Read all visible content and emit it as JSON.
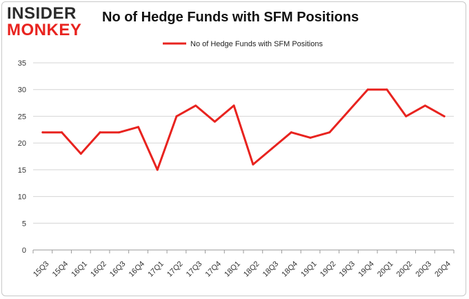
{
  "logo": {
    "top_text": "INSIDER",
    "bottom_text": "MONKEY"
  },
  "colors": {
    "line": "#e8231f",
    "grid": "#d4d4d4",
    "axis": "#9a9a9a"
  },
  "chart_data": {
    "type": "line",
    "title": "No of Hedge Funds with SFM Positions",
    "xlabel": "",
    "ylabel": "",
    "categories": [
      "15Q3",
      "15Q4",
      "16Q1",
      "16Q2",
      "16Q3",
      "16Q4",
      "17Q1",
      "17Q2",
      "17Q3",
      "17Q4",
      "18Q1",
      "18Q2",
      "18Q3",
      "18Q4",
      "19Q1",
      "19Q2",
      "19Q3",
      "19Q4",
      "20Q1",
      "20Q2",
      "20Q3",
      "20Q4"
    ],
    "series": [
      {
        "name": "No of Hedge Funds with SFM Positions",
        "values": [
          22,
          22,
          18,
          22,
          22,
          23,
          15,
          25,
          27,
          24,
          27,
          16,
          19,
          22,
          21,
          22,
          26,
          30,
          30,
          25,
          27,
          25
        ]
      }
    ],
    "ylim": [
      0,
      35
    ],
    "yticks": [
      0,
      5,
      10,
      15,
      20,
      25,
      30,
      35
    ],
    "grid": true,
    "legend_position": "top-center"
  }
}
